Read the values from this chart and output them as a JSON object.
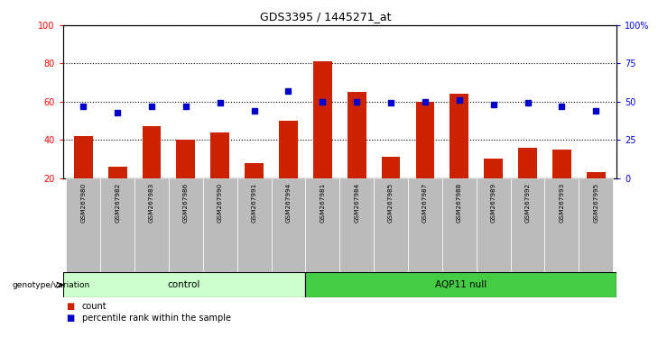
{
  "title": "GDS3395 / 1445271_at",
  "samples": [
    "GSM267980",
    "GSM267982",
    "GSM267983",
    "GSM267986",
    "GSM267990",
    "GSM267991",
    "GSM267994",
    "GSM267981",
    "GSM267984",
    "GSM267985",
    "GSM267987",
    "GSM267988",
    "GSM267989",
    "GSM267992",
    "GSM267993",
    "GSM267995"
  ],
  "bar_values": [
    42,
    26,
    47,
    40,
    44,
    28,
    50,
    81,
    65,
    31,
    60,
    64,
    30,
    36,
    35,
    23
  ],
  "percentile_values": [
    47,
    43,
    47,
    47,
    49,
    44,
    57,
    50,
    50,
    49,
    50,
    51,
    48,
    49,
    47,
    44
  ],
  "bar_color": "#cc2200",
  "percentile_color": "#0000cc",
  "ylim_left": [
    20,
    100
  ],
  "ylim_right": [
    0,
    100
  ],
  "yticks_left": [
    20,
    40,
    60,
    80,
    100
  ],
  "yticks_right": [
    0,
    25,
    50,
    75,
    100
  ],
  "ytick_labels_right": [
    "0",
    "25",
    "50",
    "75",
    "100%"
  ],
  "control_label": "control",
  "aqp11_label": "AQP11 null",
  "genotype_label": "genotype/variation",
  "legend_count": "count",
  "legend_percentile": "percentile rank within the sample",
  "control_count": 7,
  "aqp11_count": 9,
  "control_bg": "#ccffcc",
  "aqp11_bg": "#44cc44",
  "tick_bg": "#bbbbbb",
  "bar_width": 0.55,
  "fig_width": 7.01,
  "fig_height": 3.54
}
